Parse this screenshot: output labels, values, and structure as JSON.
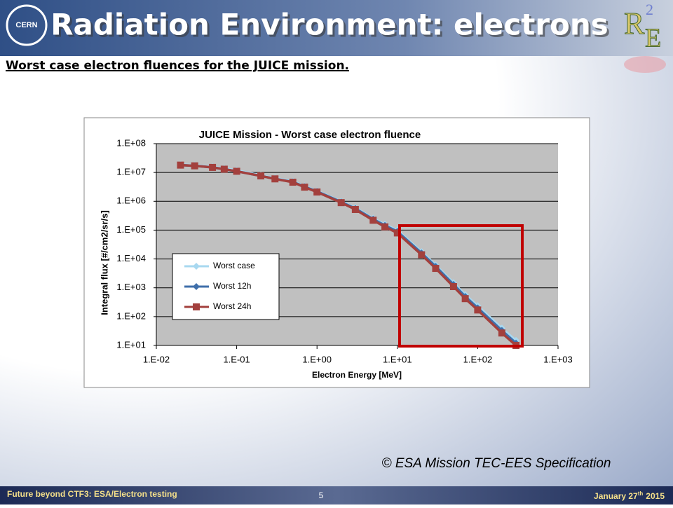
{
  "slide": {
    "title": "Radiation Environment: electrons",
    "subtitle": "Worst case electron fluences for the JUICE mission.",
    "credit": "© ESA Mission TEC-EES Specification",
    "footer": "Future beyond CTF3: ESA/Electron testing",
    "page": "5",
    "date": {
      "main": "January 27",
      "sup": "th",
      "year": "2015"
    },
    "logo_left": "CERN",
    "logo_right": {
      "r": "R",
      "two": "2",
      "e": "E"
    }
  },
  "chart_data": {
    "type": "line",
    "title": "JUICE Mission - Worst case electron fluence",
    "x_label": "Electron Energy [MeV]",
    "y_label": "Integral flux [#/cm2/sr/s]",
    "x_log": true,
    "y_log": true,
    "grid": true,
    "legend_position": "left",
    "xlim": [
      0.01,
      1000
    ],
    "xticks": [
      {
        "value": 0.01,
        "label": "1.E-02"
      },
      {
        "value": 0.1,
        "label": "1.E-01"
      },
      {
        "value": 1,
        "label": "1.E+00"
      },
      {
        "value": 10,
        "label": "1.E+01"
      },
      {
        "value": 100,
        "label": "1.E+02"
      },
      {
        "value": 1000,
        "label": "1.E+03"
      }
    ],
    "ylim": [
      10,
      100000000
    ],
    "yticks": [
      {
        "value": 10,
        "label": "1.E+01"
      },
      {
        "value": 100,
        "label": "1.E+02"
      },
      {
        "value": 1000,
        "label": "1.E+03"
      },
      {
        "value": 10000,
        "label": "1.E+04"
      },
      {
        "value": 100000,
        "label": "1.E+05"
      },
      {
        "value": 1000000,
        "label": "1.E+06"
      },
      {
        "value": 10000000,
        "label": "1.E+07"
      },
      {
        "value": 100000000,
        "label": "1.E+08"
      }
    ],
    "x": [
      0.02,
      0.03,
      0.05,
      0.07,
      0.1,
      0.2,
      0.3,
      0.5,
      0.7,
      1,
      2,
      3,
      5,
      7,
      10,
      20,
      30,
      50,
      70,
      100,
      200,
      300
    ],
    "series": [
      {
        "name": "Worst case",
        "color": "#a8d8f0",
        "marker": "diamond",
        "values": [
          19000000,
          18000000,
          16000000,
          14000000,
          12000000,
          8000000,
          6500000,
          5000000,
          3400000,
          2300000,
          1000000,
          600000,
          260000,
          160000,
          100000,
          18000,
          6200,
          1500,
          580,
          240,
          40,
          15
        ]
      },
      {
        "name": "Worst 12h",
        "color": "#3f6faa",
        "marker": "diamond",
        "values": [
          18000000,
          17000000,
          15000000,
          13000000,
          11000000,
          7600000,
          6000000,
          4700000,
          3200000,
          2200000,
          950000,
          560000,
          240000,
          145000,
          90000,
          16000,
          5500,
          1300,
          500,
          200,
          33,
          12
        ]
      },
      {
        "name": "Worst 24h",
        "color": "#a3403d",
        "marker": "square",
        "values": [
          18000000,
          17000000,
          15000000,
          13000000,
          11000000,
          7600000,
          6000000,
          4600000,
          3100000,
          2100000,
          900000,
          520000,
          220000,
          130000,
          80000,
          14000,
          4700,
          1100,
          420,
          170,
          27,
          10
        ]
      }
    ]
  }
}
